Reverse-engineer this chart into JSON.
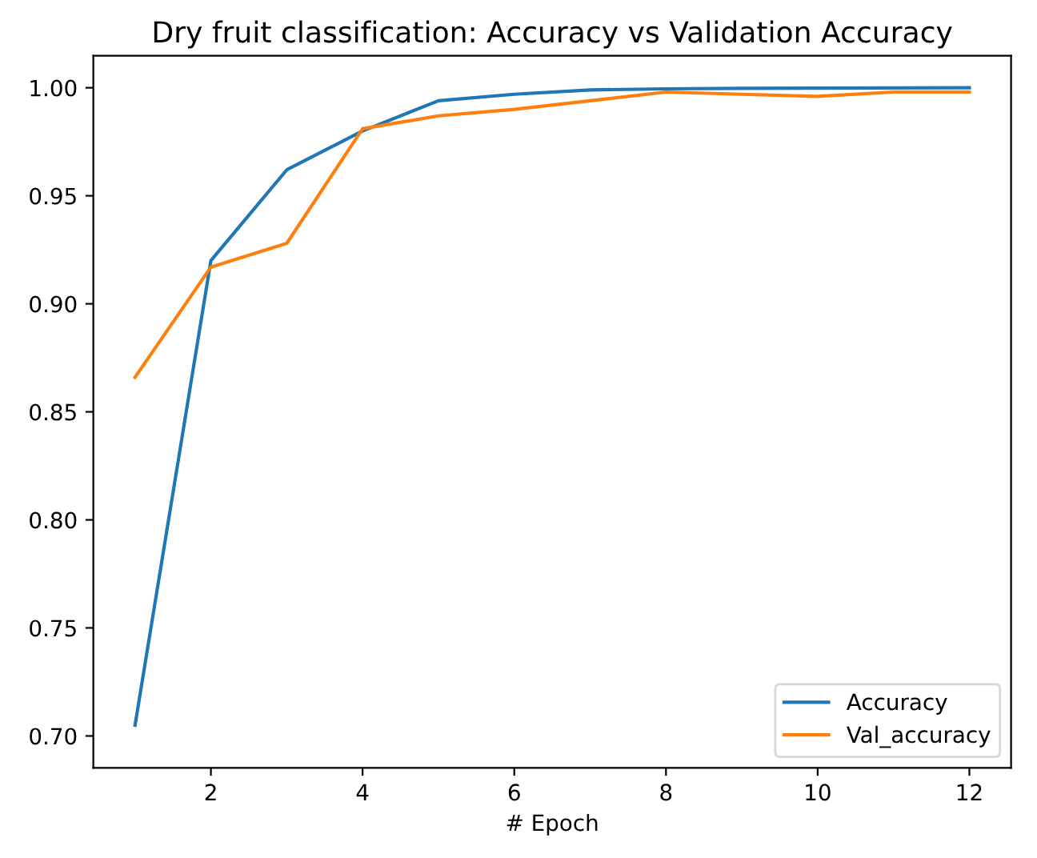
{
  "chart_data": {
    "type": "line",
    "title": "Dry fruit classification: Accuracy vs Validation Accuracy",
    "xlabel": "# Epoch",
    "x": [
      1,
      2,
      3,
      4,
      5,
      6,
      7,
      8,
      9,
      10,
      11,
      12
    ],
    "series": [
      {
        "name": "Accuracy",
        "color": "#1f77b4",
        "values": [
          0.705,
          0.92,
          0.962,
          0.98,
          0.994,
          0.997,
          0.999,
          0.9995,
          0.9997,
          0.9998,
          0.9999,
          1.0
        ]
      },
      {
        "name": "Val_accuracy",
        "color": "#ff7f0e",
        "values": [
          0.866,
          0.917,
          0.928,
          0.981,
          0.987,
          0.99,
          0.994,
          0.998,
          0.997,
          0.996,
          0.998,
          0.998
        ]
      }
    ],
    "xlim": [
      0.45,
      12.55
    ],
    "xticks": [
      2,
      4,
      6,
      8,
      10,
      12
    ],
    "ylim": [
      0.6852,
      1.0148
    ],
    "yticks": [
      {
        "value": 0.7,
        "label": "0.70"
      },
      {
        "value": 0.75,
        "label": "0.75"
      },
      {
        "value": 0.8,
        "label": "0.80"
      },
      {
        "value": 0.85,
        "label": "0.85"
      },
      {
        "value": 0.9,
        "label": "0.90"
      },
      {
        "value": 0.95,
        "label": "0.95"
      },
      {
        "value": 1.0,
        "label": "1.00"
      }
    ],
    "grid": false,
    "legend": "bottom right",
    "marker": "none",
    "line_style": "solid"
  }
}
